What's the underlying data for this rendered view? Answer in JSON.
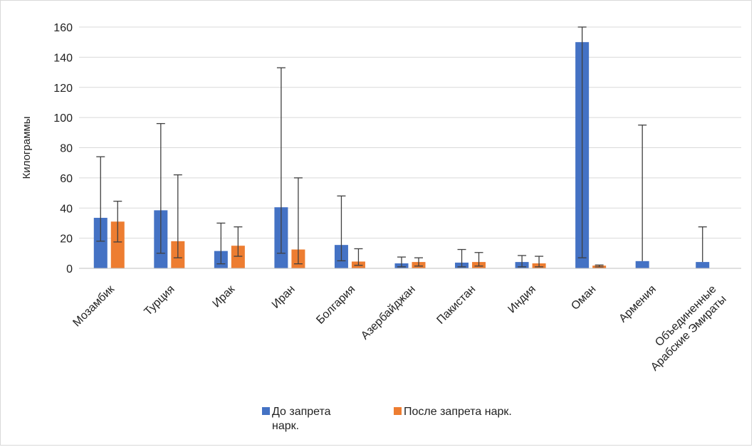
{
  "chart_data": {
    "type": "bar",
    "ylabel": "Килограммы",
    "ylim": [
      0,
      160
    ],
    "yticks": [
      0,
      20,
      40,
      60,
      80,
      100,
      120,
      140,
      160
    ],
    "grid": true,
    "legend_position": "bottom",
    "categories": [
      [
        "Мозамбик"
      ],
      [
        "Турция"
      ],
      [
        "Ирак"
      ],
      [
        "Иран"
      ],
      [
        "Болгария"
      ],
      [
        "Азербайджан"
      ],
      [
        "Пакистан"
      ],
      [
        "Индия"
      ],
      [
        "Оман"
      ],
      [
        "Армения"
      ],
      [
        "Объединенные",
        "Арабские Эмираты"
      ]
    ],
    "series": [
      {
        "name": [
          "До запрета",
          "нарк."
        ],
        "color": "#4472c4",
        "values": [
          33.5,
          38.5,
          11.5,
          40.5,
          15.5,
          3.3,
          3.8,
          4.2,
          150,
          4.8,
          4.2
        ],
        "error_low": [
          18,
          10,
          3,
          10,
          5,
          1,
          1,
          1,
          7,
          null,
          null
        ],
        "error_high": [
          74,
          96,
          30,
          133,
          48,
          7.5,
          12.5,
          8.5,
          160,
          95,
          27.5
        ]
      },
      {
        "name": [
          "После запрета нарк."
        ],
        "color": "#ed7d31",
        "values": [
          31,
          18,
          15,
          12.5,
          4.5,
          4.2,
          4.2,
          3.3,
          1.8,
          null,
          null
        ],
        "error_low": [
          17.5,
          7,
          8,
          3,
          2,
          1.5,
          1.5,
          1,
          1,
          null,
          null
        ],
        "error_high": [
          44.5,
          62,
          27.5,
          60,
          13,
          7,
          10.5,
          8,
          2.2,
          null,
          null
        ]
      }
    ]
  }
}
